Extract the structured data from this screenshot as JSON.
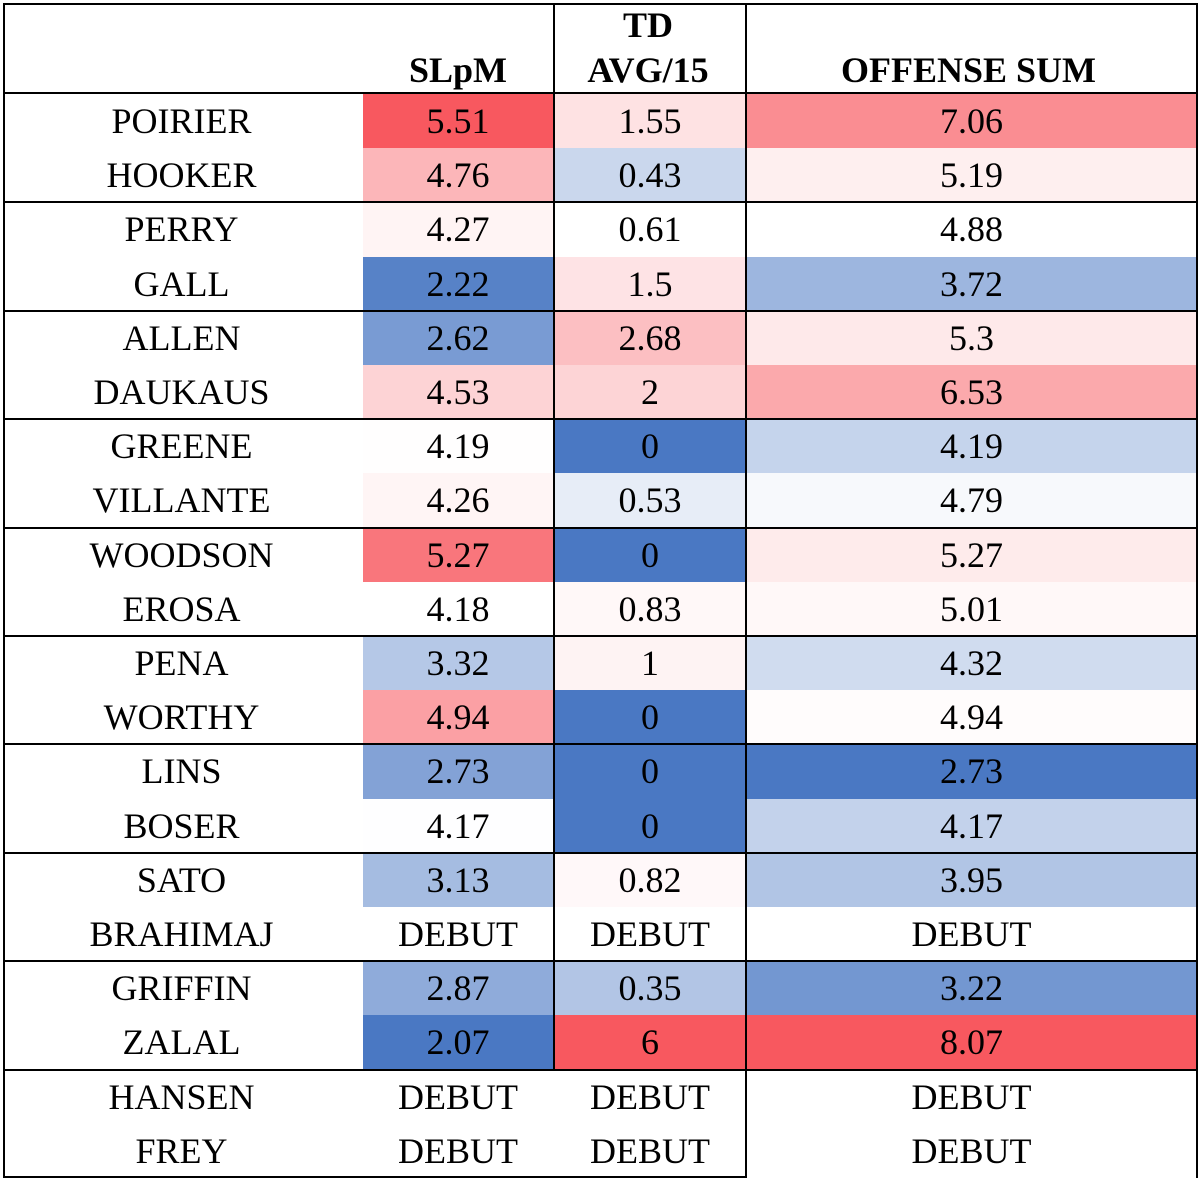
{
  "chart_data": {
    "type": "table",
    "columns": [
      {
        "key": "slpm",
        "label_lines": [
          "",
          "SLpM"
        ]
      },
      {
        "key": "td",
        "label_lines": [
          "TD",
          "AVG/15"
        ]
      },
      {
        "key": "sum",
        "label_lines": [
          "",
          "OFFENSE SUM"
        ]
      }
    ],
    "rows": [
      {
        "name": "POIRIER",
        "slpm": "5.51",
        "td": "1.55",
        "sum": "7.06"
      },
      {
        "name": "HOOKER",
        "slpm": "4.76",
        "td": "0.43",
        "sum": "5.19"
      },
      {
        "name": "PERRY",
        "slpm": "4.27",
        "td": "0.61",
        "sum": "4.88"
      },
      {
        "name": "GALL",
        "slpm": "2.22",
        "td": "1.5",
        "sum": "3.72"
      },
      {
        "name": "ALLEN",
        "slpm": "2.62",
        "td": "2.68",
        "sum": "5.3"
      },
      {
        "name": "DAUKAUS",
        "slpm": "4.53",
        "td": "2",
        "sum": "6.53"
      },
      {
        "name": "GREENE",
        "slpm": "4.19",
        "td": "0",
        "sum": "4.19"
      },
      {
        "name": "VILLANTE",
        "slpm": "4.26",
        "td": "0.53",
        "sum": "4.79"
      },
      {
        "name": "WOODSON",
        "slpm": "5.27",
        "td": "0",
        "sum": "5.27"
      },
      {
        "name": "EROSA",
        "slpm": "4.18",
        "td": "0.83",
        "sum": "5.01"
      },
      {
        "name": "PENA",
        "slpm": "3.32",
        "td": "1",
        "sum": "4.32"
      },
      {
        "name": "WORTHY",
        "slpm": "4.94",
        "td": "0",
        "sum": "4.94"
      },
      {
        "name": "LINS",
        "slpm": "2.73",
        "td": "0",
        "sum": "2.73"
      },
      {
        "name": "BOSER",
        "slpm": "4.17",
        "td": "0",
        "sum": "4.17"
      },
      {
        "name": "SATO",
        "slpm": "3.13",
        "td": "0.82",
        "sum": "3.95"
      },
      {
        "name": "BRAHIMAJ",
        "slpm": "DEBUT",
        "td": "DEBUT",
        "sum": "DEBUT"
      },
      {
        "name": "GRIFFIN",
        "slpm": "2.87",
        "td": "0.35",
        "sum": "3.22"
      },
      {
        "name": "ZALAL",
        "slpm": "2.07",
        "td": "6",
        "sum": "8.07"
      },
      {
        "name": "HANSEN",
        "slpm": "DEBUT",
        "td": "DEBUT",
        "sum": "DEBUT"
      },
      {
        "name": "FREY",
        "slpm": "DEBUT",
        "td": "DEBUT",
        "sum": "DEBUT"
      }
    ],
    "color_scale": {
      "low": "#4a78c3",
      "mid": "#ffffff",
      "high": "#f8585f"
    }
  }
}
